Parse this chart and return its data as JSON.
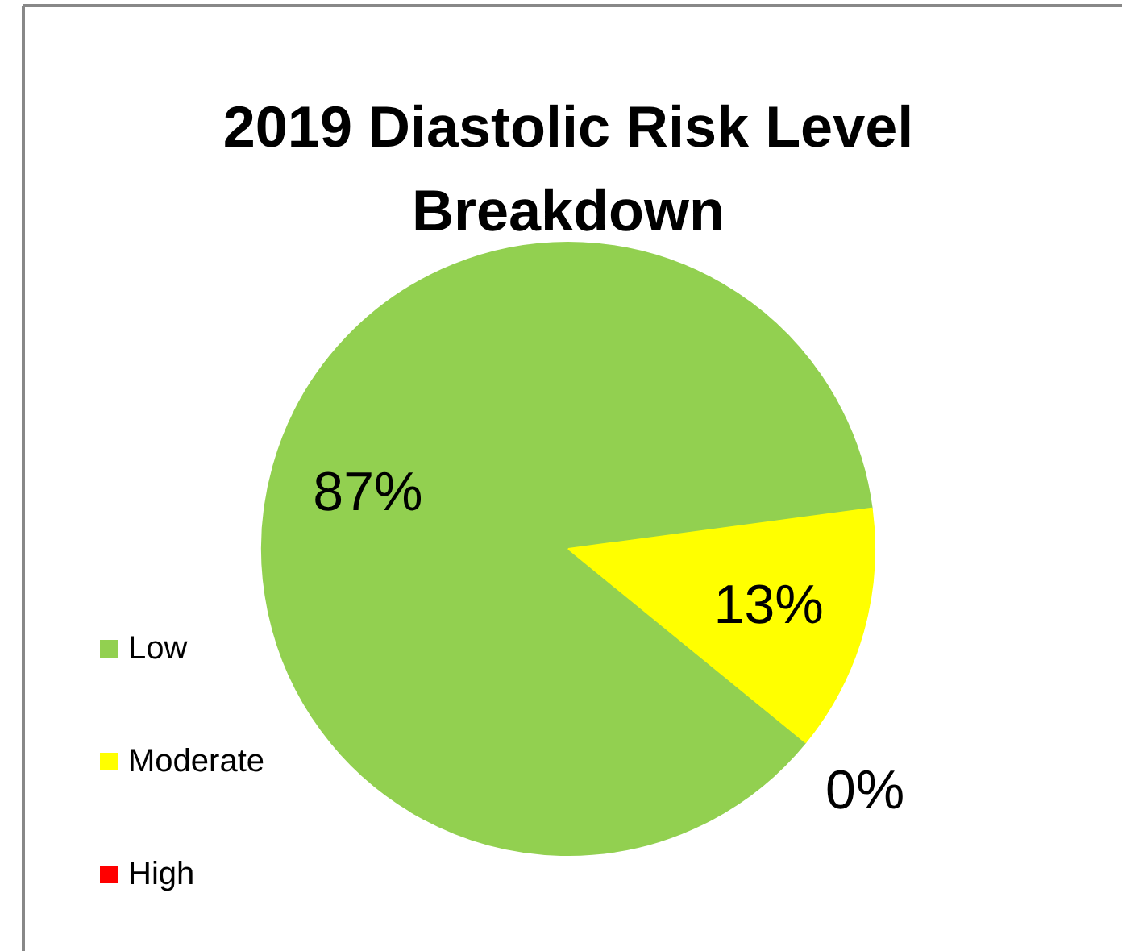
{
  "chart_data": {
    "type": "pie",
    "title": "2019 Diastolic Risk Level Breakdown",
    "categories": [
      "Low",
      "Moderate",
      "High"
    ],
    "values": [
      87,
      13,
      0
    ],
    "colors": [
      "#92d050",
      "#ffff00",
      "#ff0000"
    ],
    "value_labels": [
      "87%",
      "13%",
      "0%"
    ],
    "legend": "left"
  }
}
